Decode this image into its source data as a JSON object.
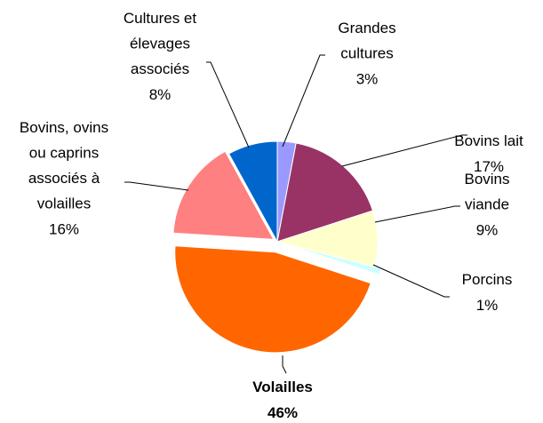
{
  "chart_data": {
    "type": "pie",
    "categories": [
      "Grandes cultures",
      "Bovins lait",
      "Bovins viande",
      "Porcins",
      "Volailles",
      "Bovins, ovins ou caprins associés à volailles",
      "Cultures et élevages associés"
    ],
    "values": [
      3,
      17,
      9,
      1,
      46,
      16,
      8
    ],
    "value_labels": [
      "3%",
      "17%",
      "9%",
      "1%",
      "46%",
      "16%",
      "8%"
    ],
    "colors": [
      "#9999ff",
      "#993366",
      "#ffffcc",
      "#ccffff",
      "#ff6600",
      "#ff8080",
      "#0066cc"
    ]
  }
}
